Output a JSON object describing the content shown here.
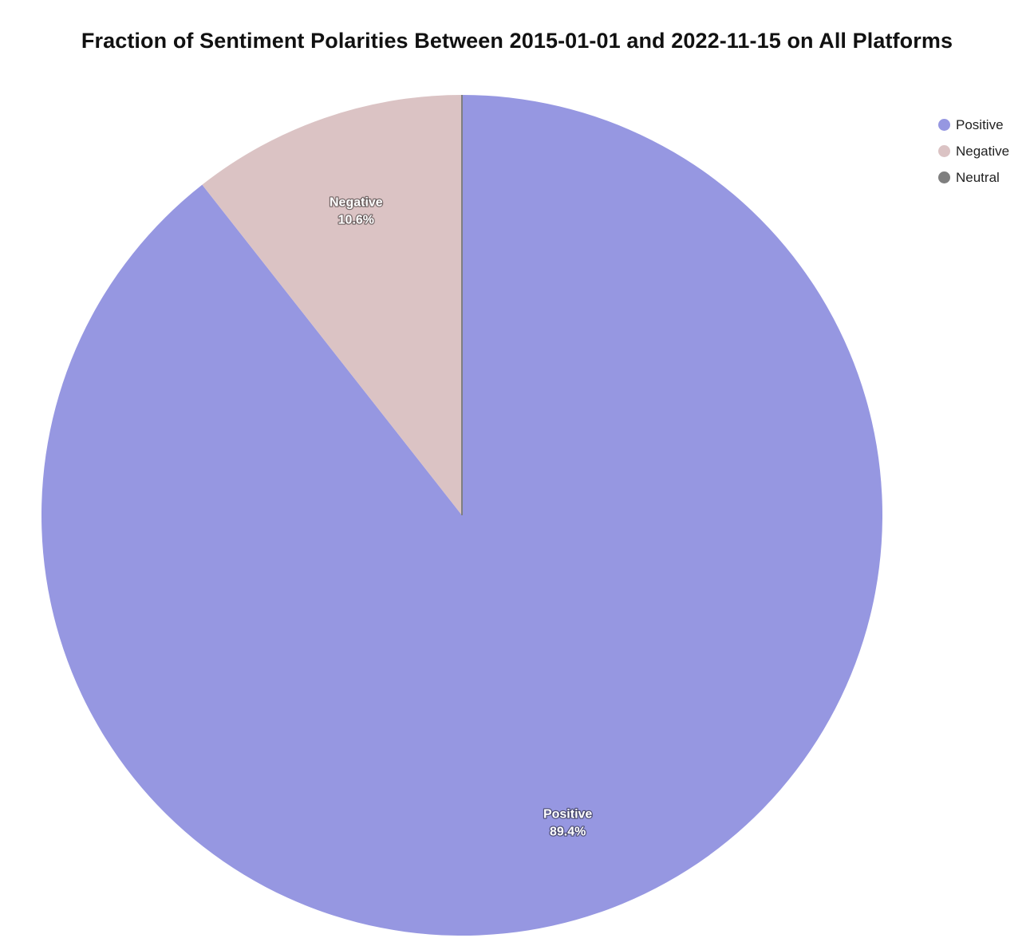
{
  "chart_data": {
    "type": "pie",
    "title": "Fraction of Sentiment Polarities Between 2015-01-01 and 2022-11-15 on All Platforms",
    "slices": [
      {
        "name": "Positive",
        "value": 89.4,
        "label": "Positive",
        "value_label": "89.4%",
        "color": "#9697e1"
      },
      {
        "name": "Negative",
        "value": 10.6,
        "label": "Negative",
        "value_label": "10.6%",
        "color": "#dbc3c4"
      },
      {
        "name": "Neutral",
        "value": 0.0,
        "label": "",
        "value_label": "",
        "color": "#7f7f7f"
      }
    ],
    "legend": {
      "position": "top-right",
      "items": [
        {
          "label": "Positive",
          "color": "#9697e1"
        },
        {
          "label": "Negative",
          "color": "#dbc3c4"
        },
        {
          "label": "Neutral",
          "color": "#7f7f7f"
        }
      ]
    }
  }
}
